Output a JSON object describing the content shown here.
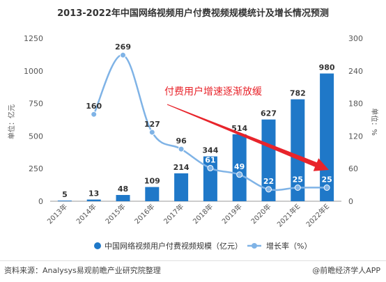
{
  "chart_data": {
    "type": "bar",
    "title": "2013-2022年中国网络视频用户付费视频规模统计及增长情况预测",
    "categories": [
      "2013年",
      "2014年",
      "2015年",
      "2016年",
      "2017年",
      "2018年",
      "2019年",
      "2020年",
      "2021年E",
      "2022年E"
    ],
    "series": [
      {
        "name": "中国网络视频用户付费视频规模（亿元）",
        "type": "bar",
        "axis": "left",
        "values": [
          5,
          13,
          48,
          109,
          214,
          344,
          514,
          627,
          782,
          980
        ]
      },
      {
        "name": "增长率（%）",
        "type": "line",
        "axis": "right",
        "values": [
          null,
          160,
          269,
          127,
          96,
          61,
          49,
          22,
          25,
          25
        ]
      }
    ],
    "left_axis": {
      "label": "单位：亿元",
      "min": 0,
      "max": 1250,
      "ticks": [
        "0",
        "250",
        "500",
        "750",
        "1000",
        "1250"
      ]
    },
    "right_axis": {
      "label": "单位：%",
      "min": 0,
      "max": 300,
      "ticks": [
        "0",
        "60",
        "120",
        "180",
        "240",
        "300"
      ]
    },
    "annotation": "付费用户增速逐渐放缓",
    "legend_position": "bottom",
    "grid": false
  },
  "colors": {
    "bar": "#1f78c8",
    "line": "#7fb3e6",
    "annotation": "#e8242b",
    "axis": "#999999"
  },
  "footer": {
    "source": "资料来源：Analysys易观前瞻产业研究院整理",
    "brand": "@前瞻经济学人APP"
  }
}
